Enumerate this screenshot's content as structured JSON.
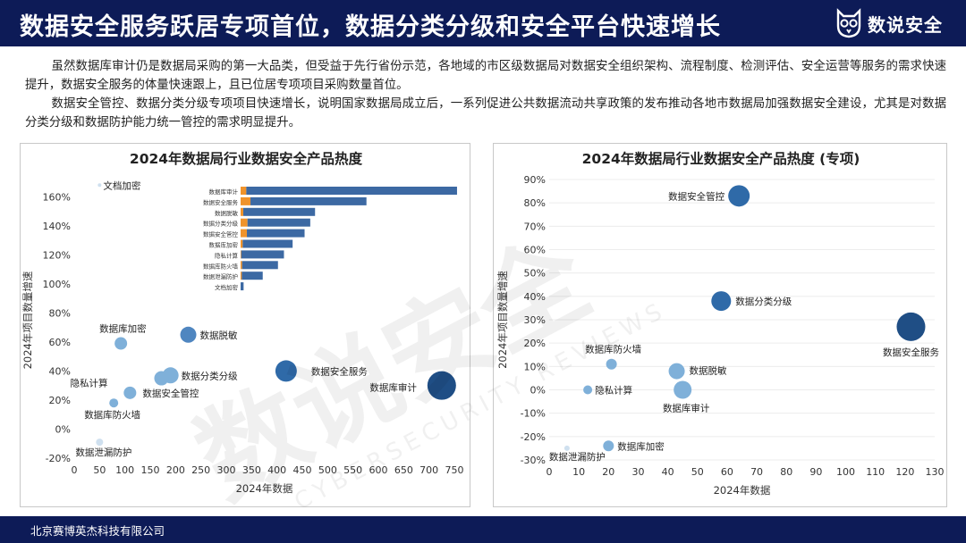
{
  "header": {
    "title": "数据安全服务跃居专项首位，数据分类分级和安全平台快速增长",
    "logo_text": "数说安全",
    "bg_color": "#0d1b57"
  },
  "paragraphs": [
    "虽然数据库审计仍是数据局采购的第一大品类，但受益于先行省份示范，各地域的市区级数据局对数据安全组织架构、流程制度、检测评估、安全运营等服务的需求快速提升，数据安全服务的体量快速跟上，且已位居专项项目采购数量首位。",
    "数据安全管控、数据分类分级专项项目快速增长，说明国家数据局成立后，一系列促进公共数据流动共享政策的发布推动各地市数据局加强数据安全建设，尤其是对数据分类分级和数据防护能力统一管控的需求明显提升。"
  ],
  "footer": {
    "company": "北京赛博英杰科技有限公司"
  },
  "watermark": {
    "main": "数说安全",
    "sub": "CYBERSECURITY REVIEWS"
  },
  "chart_data": [
    {
      "type": "scatter",
      "title": "2024年数据局行业数据安全产品热度",
      "xlabel": "2024年数据",
      "ylabel": "2024年项目数量增速",
      "xlim": [
        0,
        750
      ],
      "ylim": [
        -20,
        170
      ],
      "x_ticks": [
        "0",
        "50",
        "100",
        "150",
        "200",
        "250",
        "300",
        "350",
        "400",
        "450",
        "500",
        "550",
        "600",
        "650",
        "700",
        "750"
      ],
      "y_ticks": [
        "-20%",
        "0%",
        "20%",
        "40%",
        "60%",
        "80%",
        "100%",
        "120%",
        "140%",
        "160%"
      ],
      "point_color": "#7fb0d9",
      "points": [
        {
          "label": "文档加密",
          "x": 50,
          "y": 168
        },
        {
          "label": "数据库加密",
          "x": 92,
          "y": 59
        },
        {
          "label": "数据脱敏",
          "x": 225,
          "y": 65
        },
        {
          "label": "数据分类分级",
          "x": 190,
          "y": 37
        },
        {
          "label": "数据安全服务",
          "x": 418,
          "y": 40
        },
        {
          "label": "数据库审计",
          "x": 725,
          "y": 30
        },
        {
          "label": "数据安全管控",
          "x": 110,
          "y": 25
        },
        {
          "label": "隐私计算",
          "x": 172,
          "y": 35
        },
        {
          "label": "数据库防火墙",
          "x": 78,
          "y": 18
        },
        {
          "label": "数据泄漏防护",
          "x": 50,
          "y": -9
        }
      ],
      "inset_bar": {
        "type": "bar",
        "categories": [
          "数据库审计",
          "数据安全服务",
          "数据脱敏",
          "数据分类分级",
          "数据安全管控",
          "数据库加密",
          "隐私计算",
          "数据库防火墙",
          "数据泄漏防护",
          "文档加密"
        ],
        "series": [
          {
            "color": "#f0932b",
            "values": [
              19,
              33,
              9,
              23,
              21,
              7,
              2,
              5,
              4,
              0
            ]
          },
          {
            "color": "#3c69a3",
            "values": [
              705,
              388,
              240,
              210,
              193,
              167,
              143,
              120,
              70,
              10
            ]
          }
        ]
      }
    },
    {
      "type": "scatter",
      "title": "2024年数据局行业数据安全产品热度 (专项)",
      "xlabel": "2024年数据",
      "ylabel": "2024年项目数量增速",
      "xlim": [
        0,
        130
      ],
      "ylim": [
        -30,
        90
      ],
      "x_ticks": [
        "0",
        "10",
        "20",
        "30",
        "40",
        "50",
        "60",
        "70",
        "80",
        "90",
        "100",
        "110",
        "120",
        "130"
      ],
      "y_ticks": [
        "-30%",
        "-20%",
        "-10%",
        "0%",
        "10%",
        "20%",
        "30%",
        "40%",
        "50%",
        "60%",
        "70%",
        "80%",
        "90%"
      ],
      "point_color": "#7fb0d9",
      "points": [
        {
          "label": "数据安全管控",
          "x": 64,
          "y": 83
        },
        {
          "label": "数据分类分级",
          "x": 58,
          "y": 38
        },
        {
          "label": "数据安全服务",
          "x": 122,
          "y": 27
        },
        {
          "label": "数据库防火墙",
          "x": 21,
          "y": 11
        },
        {
          "label": "数据脱敏",
          "x": 43,
          "y": 8
        },
        {
          "label": "隐私计算",
          "x": 13,
          "y": 0
        },
        {
          "label": "数据库审计",
          "x": 45,
          "y": 0
        },
        {
          "label": "数据库加密",
          "x": 20,
          "y": -24
        },
        {
          "label": "数据泄漏防护",
          "x": 6,
          "y": -25
        }
      ]
    }
  ]
}
